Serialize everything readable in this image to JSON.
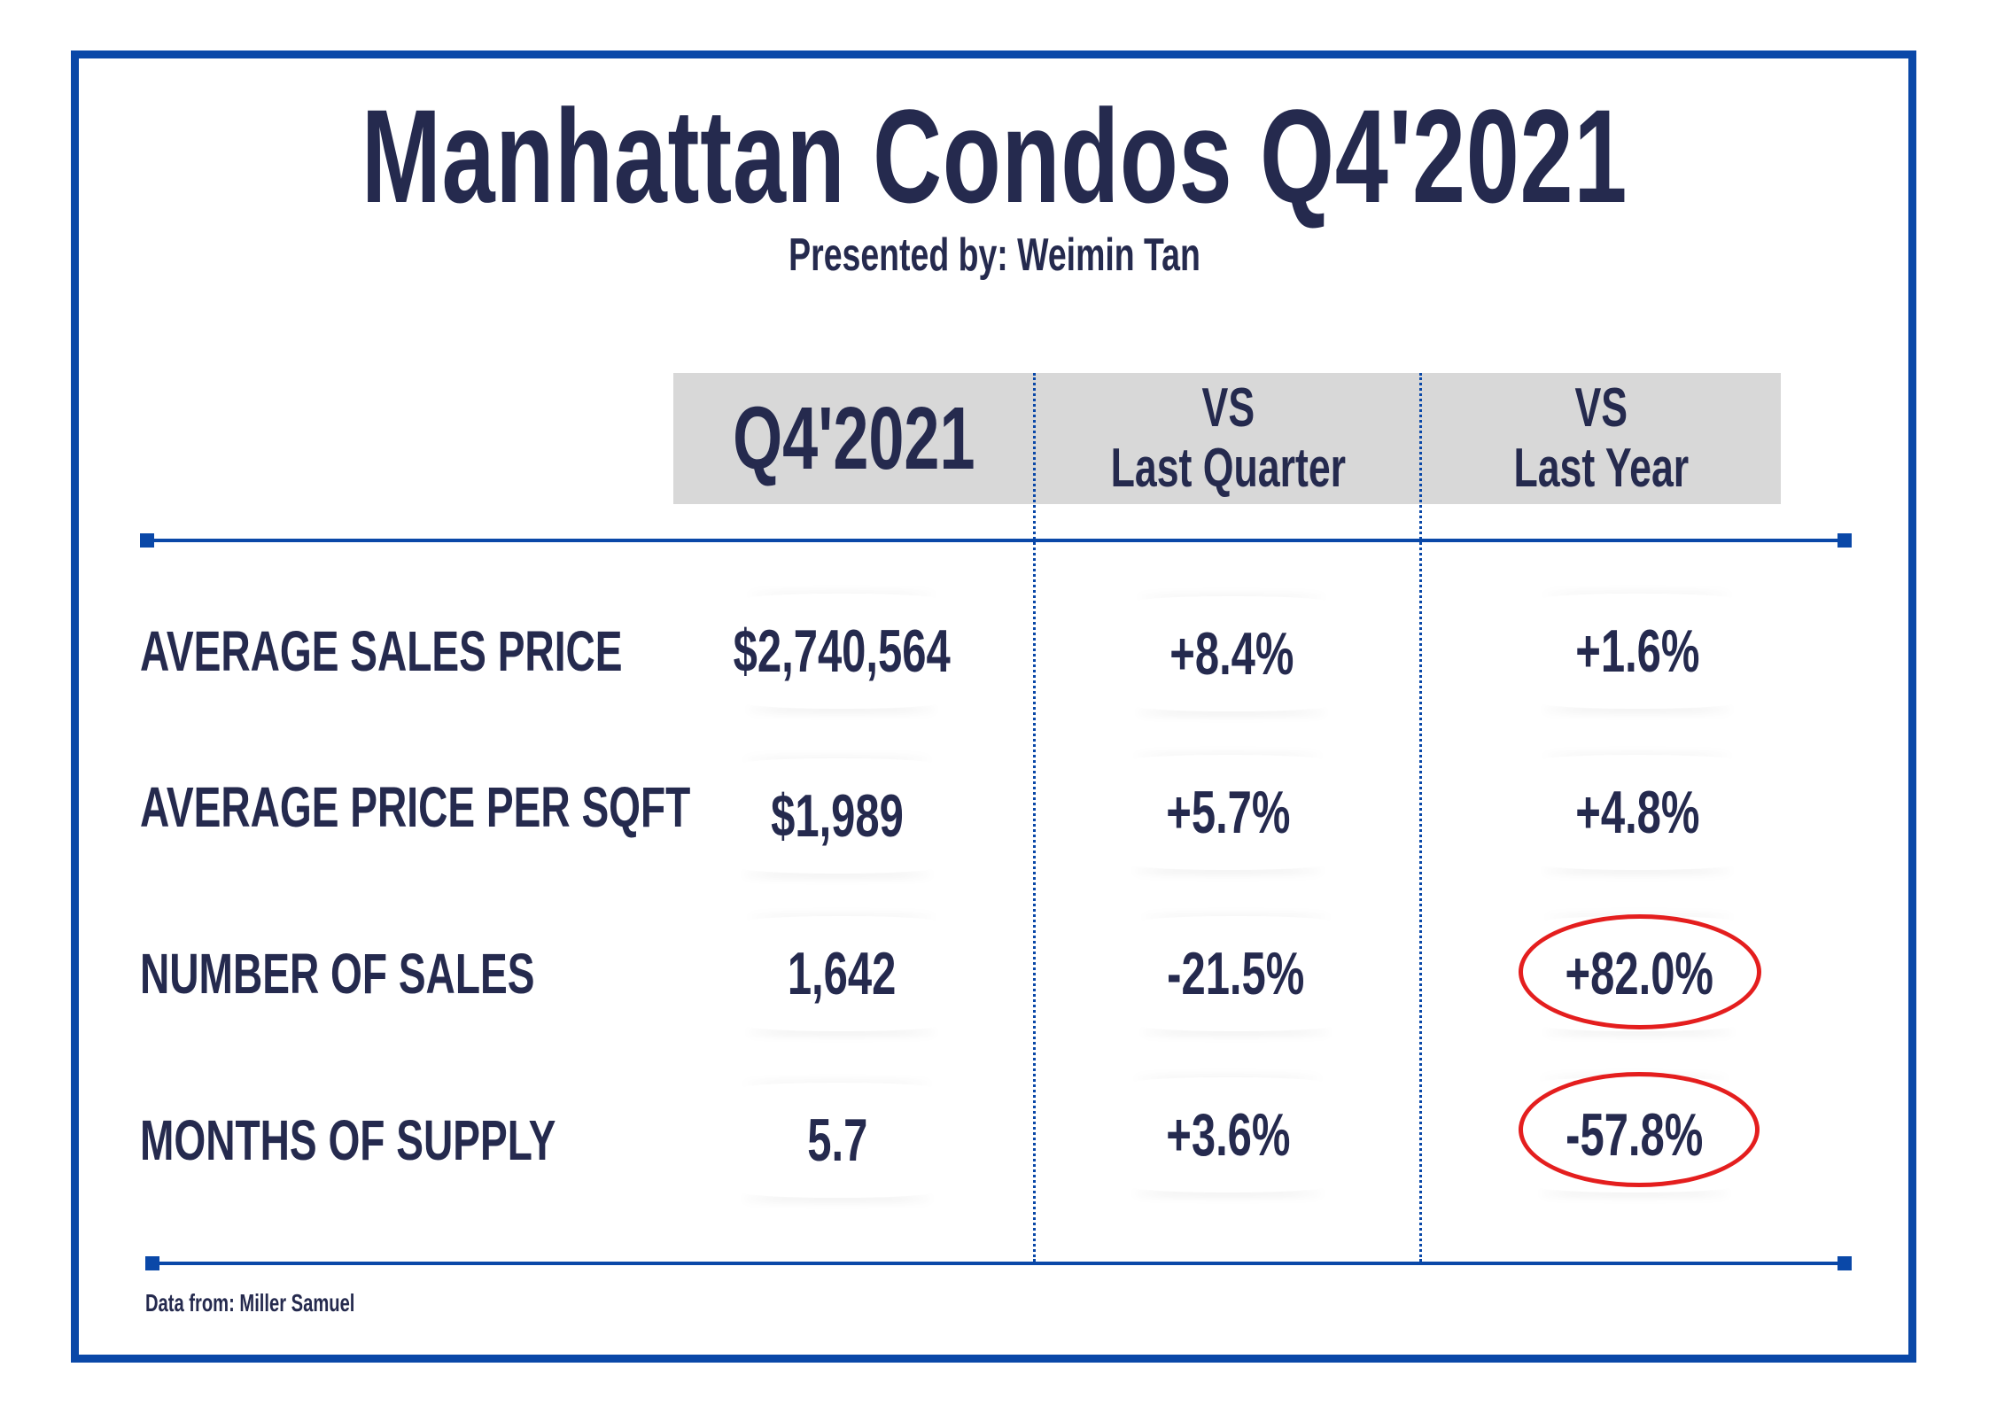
{
  "title": "Manhattan Condos Q4'2021",
  "subtitle": "Presented by: Weimin Tan",
  "table": {
    "headers": {
      "current": "Q4'2021",
      "vs_quarter_line1": "VS",
      "vs_quarter_line2": "Last Quarter",
      "vs_year_line1": "VS",
      "vs_year_line2": "Last Year"
    },
    "rows": [
      {
        "label": "AVERAGE SALES PRICE",
        "value": "$2,740,564",
        "vs_quarter": "+8.4%",
        "vs_year": "+1.6%",
        "highlighted": false
      },
      {
        "label": "AVERAGE PRICE PER SQFT",
        "value": "$1,989",
        "vs_quarter": "+5.7%",
        "vs_year": "+4.8%",
        "highlighted": false
      },
      {
        "label": "NUMBER OF SALES",
        "value": "1,642",
        "vs_quarter": "-21.5%",
        "vs_year": "+82.0%",
        "highlighted": true
      },
      {
        "label": "MONTHS OF SUPPLY",
        "value": "5.7",
        "vs_quarter": "+3.6%",
        "vs_year": "-57.8%",
        "highlighted": true
      }
    ]
  },
  "footnote": "Data from: Miller Samuel",
  "colors": {
    "navy_text": "#252a4e",
    "frame_blue": "#0a48a8",
    "header_gray": "#d8d8d8",
    "highlight_red": "#e41e1e"
  }
}
